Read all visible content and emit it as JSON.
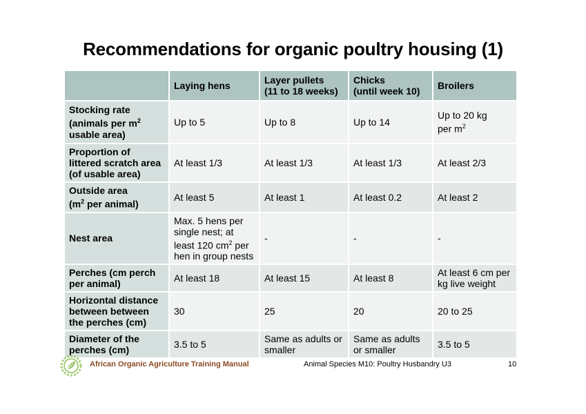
{
  "title": "Recommendations for organic poultry housing (1)",
  "header": [
    "",
    "Laying hens",
    "Layer pullets\n(11 to 18 weeks)",
    "Chicks\n(until week 10)",
    "Broilers"
  ],
  "rows": [
    {
      "label": "Stocking rate (animals per m² usable area)",
      "cells": [
        "Up to 5",
        "Up to 8",
        "Up to 14",
        "Up to 20 kg per m²"
      ]
    },
    {
      "label": "Proportion of littered scratch area (of usable area)",
      "cells": [
        "At least 1/3",
        "At least 1/3",
        "At least 1/3",
        "At least 2/3"
      ]
    },
    {
      "label": "Outside area (m² per animal)",
      "cells": [
        "At least 5",
        "At least 1",
        "At least 0.2",
        "At least 2"
      ]
    },
    {
      "label": "Nest area",
      "cells": [
        "Max. 5 hens per single nest; at least 120 cm² per hen in group nests",
        "-",
        "-",
        "-"
      ]
    },
    {
      "label": "Perches (cm perch per animal)",
      "cells": [
        "At least 18",
        "At least 15",
        "At least 8",
        "At least 6 cm per kg live weight"
      ]
    },
    {
      "label": "Horizontal distance between between the perches (cm)",
      "cells": [
        "30",
        "25",
        "20",
        "20 to 25"
      ]
    },
    {
      "label": "Diameter of the perches (cm)",
      "cells": [
        "3.5 to 5",
        "Same as adults or smaller",
        "Same as adults or smaller",
        "3.5 to 5"
      ]
    }
  ],
  "footer": {
    "left": "African Organic Agriculture Training Manual",
    "middle": "Animal Species M10: Poultry Husbandry U3",
    "page": "10",
    "logo_icon": "organic-leaf-logo-icon"
  },
  "colors": {
    "header_bg": "#adc4c1",
    "row_label_bg": "#d5e0de",
    "row_dark_bg": "#e3e8e7",
    "row_light_bg": "#f0f3f2",
    "footer_text": "#8a4b22",
    "logo": "#8fbf5a"
  }
}
